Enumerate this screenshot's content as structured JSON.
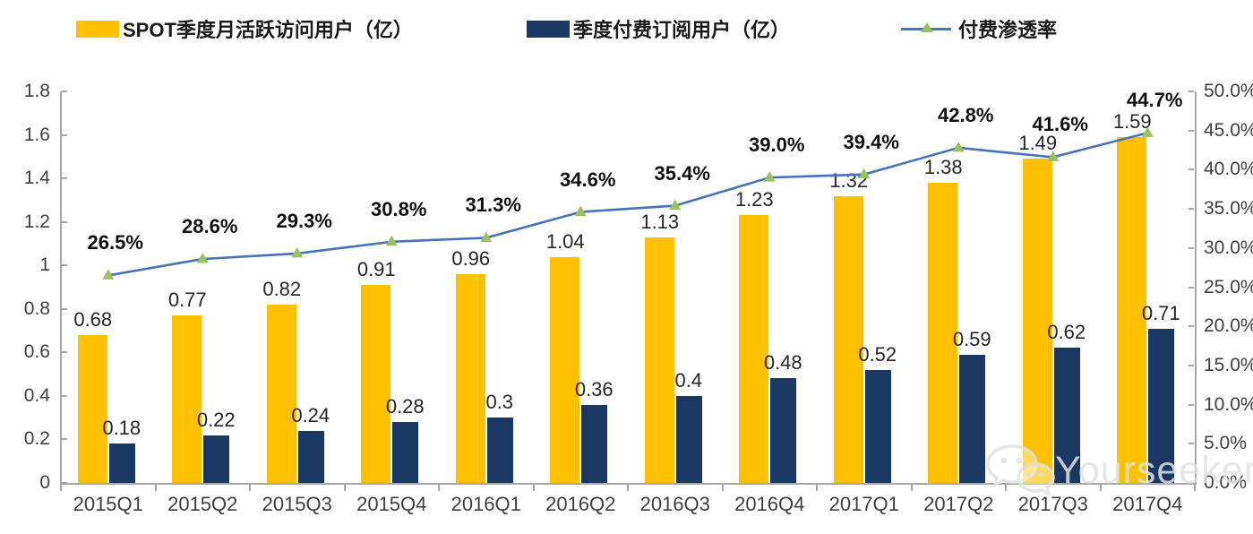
{
  "colors": {
    "mau_bar": "#FFC000",
    "subscriber_bar": "#1B3764",
    "penetration_line": "#4A72B8",
    "penetration_marker": "#9CBF5F",
    "axis": "#A6A6A6",
    "tick_text": "#3F3F3F",
    "watermark_text": "#E2E2E2"
  },
  "watermark": {
    "text": "Yourseeker",
    "icon": "wechat-icon"
  },
  "chart_data": {
    "type": "combo",
    "grid": false,
    "legend_position": "top",
    "categories": [
      "2015Q1",
      "2015Q2",
      "2015Q3",
      "2015Q4",
      "2016Q1",
      "2016Q2",
      "2016Q3",
      "2016Q4",
      "2017Q1",
      "2017Q2",
      "2017Q3",
      "2017Q4"
    ],
    "series": [
      {
        "name": "SPOT季度月活跃访问用户（亿）",
        "type": "bar",
        "axis": "left",
        "color": "#FFC000",
        "values": [
          0.68,
          0.77,
          0.82,
          0.91,
          0.96,
          1.04,
          1.13,
          1.23,
          1.32,
          1.38,
          1.49,
          1.59
        ],
        "labels": [
          "0.68",
          "0.77",
          "0.82",
          "0.91",
          "0.96",
          "1.04",
          "1.13",
          "1.23",
          "1.32",
          "1.38",
          "1.49",
          "1.59"
        ]
      },
      {
        "name": "季度付费订阅用户（亿）",
        "type": "bar",
        "axis": "left",
        "color": "#1B3764",
        "values": [
          0.18,
          0.22,
          0.24,
          0.28,
          0.3,
          0.36,
          0.4,
          0.48,
          0.52,
          0.59,
          0.62,
          0.71
        ],
        "labels": [
          "0.18",
          "0.22",
          "0.24",
          "0.28",
          "0.3",
          "0.36",
          "0.4",
          "0.48",
          "0.52",
          "0.59",
          "0.62",
          "0.71"
        ]
      },
      {
        "name": "付费渗透率",
        "type": "line",
        "axis": "right",
        "color": "#4A72B8",
        "marker": "triangle",
        "marker_color": "#9CBF5F",
        "values": [
          26.5,
          28.6,
          29.3,
          30.8,
          31.3,
          34.6,
          35.4,
          39.0,
          39.4,
          42.8,
          41.6,
          44.7
        ],
        "labels": [
          "26.5%",
          "28.6%",
          "29.3%",
          "30.8%",
          "31.3%",
          "34.6%",
          "35.4%",
          "39.0%",
          "39.4%",
          "42.8%",
          "41.6%",
          "44.7%"
        ]
      }
    ],
    "left_axis": {
      "min": 0,
      "max": 1.8,
      "tick_labels": [
        "0",
        "0.2",
        "0.4",
        "0.6",
        "0.8",
        "1",
        "1.2",
        "1.4",
        "1.6",
        "1.8"
      ]
    },
    "right_axis": {
      "min": 0,
      "max": 50,
      "tick_labels": [
        "0.0%",
        "5.0%",
        "10.0%",
        "15.0%",
        "20.0%",
        "25.0%",
        "30.0%",
        "35.0%",
        "40.0%",
        "45.0%",
        "50.0%"
      ]
    }
  }
}
